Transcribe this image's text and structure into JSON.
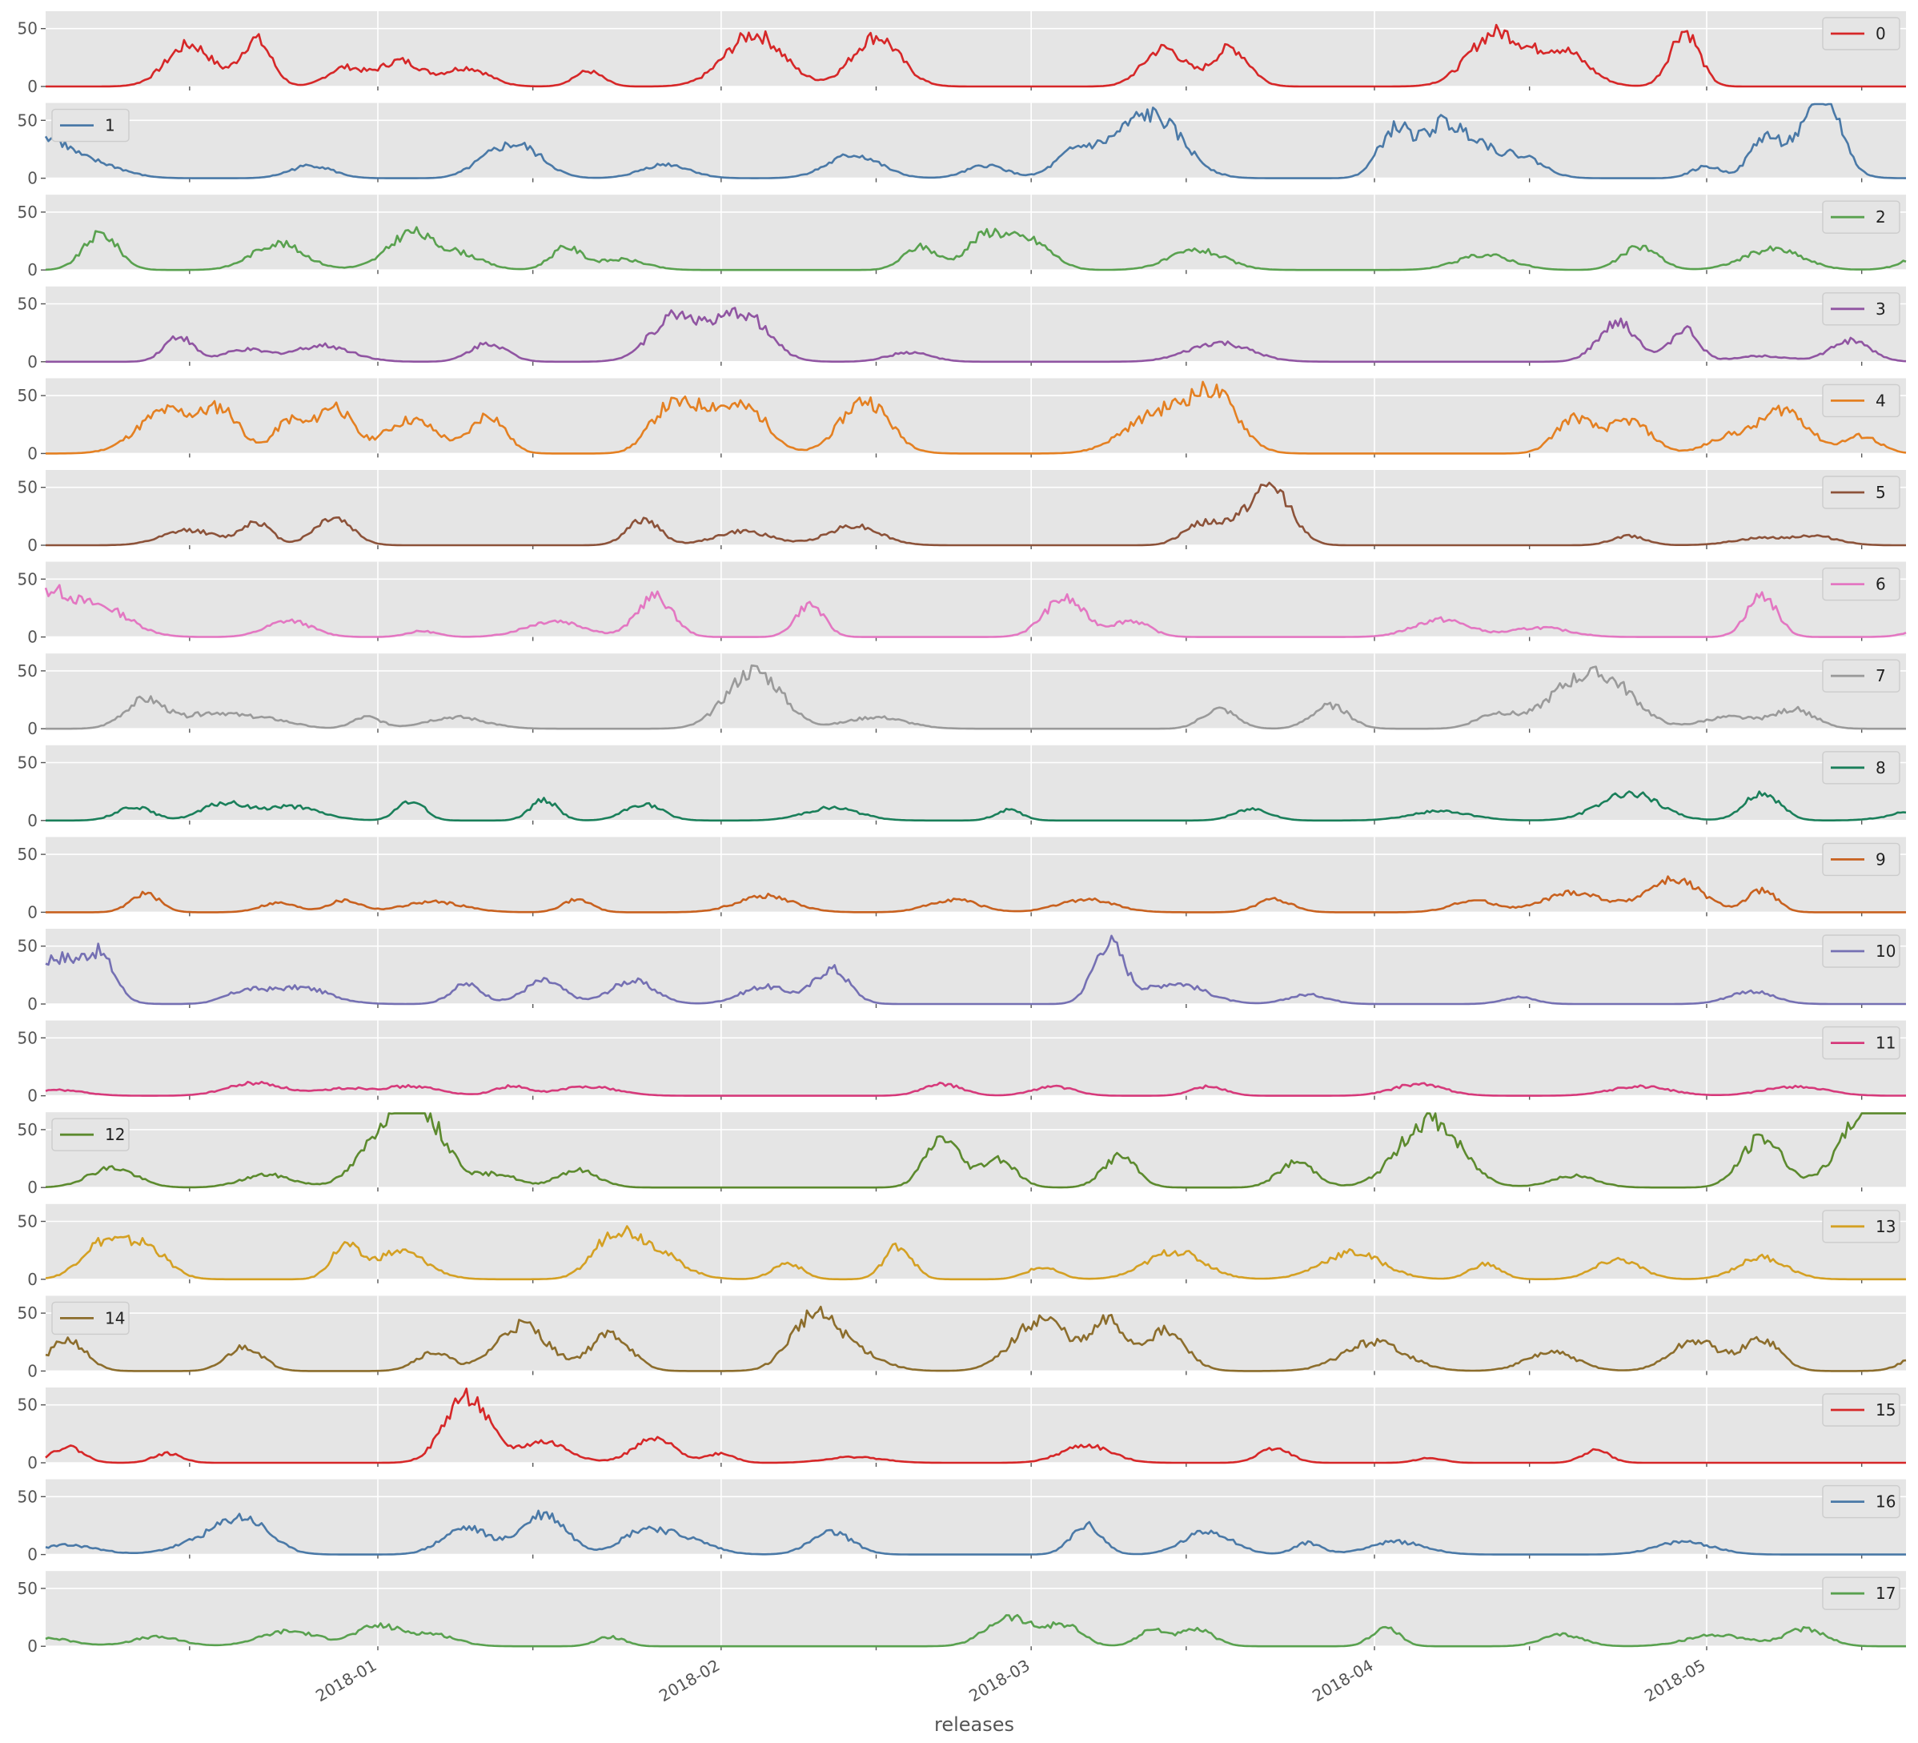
{
  "chart_data": {
    "type": "line",
    "subplots": true,
    "xlabel": "releases",
    "x_start": "2017-12-02",
    "x_end": "2018-05-19",
    "x_ticks": [
      "2018-01",
      "2018-02",
      "2018-03",
      "2018-04",
      "2018-05"
    ],
    "x_tick_dates": [
      "2018-01-01",
      "2018-02-01",
      "2018-03-01",
      "2018-04-01",
      "2018-05-01"
    ],
    "ylim": [
      0,
      65
    ],
    "y_ticks": [
      0,
      50
    ],
    "grid": true,
    "background": "#e5e5e5",
    "series": [
      {
        "name": "0",
        "color": "#d62728",
        "legend": "top-right",
        "peaks": [
          [
            13,
            36
          ],
          [
            19,
            40
          ],
          [
            27,
            16
          ],
          [
            32,
            22
          ],
          [
            38,
            16
          ],
          [
            49,
            13
          ],
          [
            64,
            45
          ],
          [
            75,
            43
          ],
          [
            101,
            33
          ],
          [
            107,
            33
          ],
          [
            131,
            46
          ],
          [
            137,
            30
          ],
          [
            148,
            48
          ]
        ]
      },
      {
        "name": "1",
        "color": "#4a79a7",
        "legend": "top-left",
        "peaks": [
          [
            0,
            30
          ],
          [
            4,
            14
          ],
          [
            24,
            11
          ],
          [
            40,
            12
          ],
          [
            43,
            25
          ],
          [
            56,
            12
          ],
          [
            73,
            20
          ],
          [
            85,
            11
          ],
          [
            93,
            21
          ],
          [
            98,
            32
          ],
          [
            101,
            33
          ],
          [
            122,
            43
          ],
          [
            126,
            42
          ],
          [
            129,
            28
          ],
          [
            133,
            20
          ],
          [
            150,
            10
          ],
          [
            155,
            27
          ],
          [
            159,
            35
          ],
          [
            161,
            44
          ]
        ]
      },
      {
        "name": "2",
        "color": "#59a14f",
        "legend": "top-right",
        "peaks": [
          [
            5,
            31
          ],
          [
            21,
            23
          ],
          [
            31,
            6
          ],
          [
            33,
            26
          ],
          [
            37,
            15
          ],
          [
            47,
            19
          ],
          [
            52,
            9
          ],
          [
            79,
            20
          ],
          [
            85,
            30
          ],
          [
            89,
            24
          ],
          [
            104,
            17
          ],
          [
            130,
            13
          ],
          [
            144,
            20
          ],
          [
            156,
            18
          ],
          [
            172,
            28
          ]
        ]
      },
      {
        "name": "3",
        "color": "#9055a2",
        "legend": "top-right",
        "peaks": [
          [
            12,
            22
          ],
          [
            18,
            10
          ],
          [
            25,
            14
          ],
          [
            40,
            16
          ],
          [
            57,
            40
          ],
          [
            63,
            41
          ],
          [
            78,
            8
          ],
          [
            106,
            16
          ],
          [
            142,
            33
          ],
          [
            148,
            28
          ],
          [
            155,
            5
          ],
          [
            163,
            18
          ]
        ]
      },
      {
        "name": "4",
        "color": "#e48022",
        "legend": "top-right",
        "peaks": [
          [
            11,
            37
          ],
          [
            16,
            33
          ],
          [
            22,
            28
          ],
          [
            26,
            41
          ],
          [
            33,
            29
          ],
          [
            40,
            33
          ],
          [
            56,
            30
          ],
          [
            60,
            38
          ],
          [
            64,
            26
          ],
          [
            74,
            46
          ],
          [
            99,
            20
          ],
          [
            103,
            30
          ],
          [
            106,
            35
          ],
          [
            138,
            30
          ],
          [
            143,
            28
          ],
          [
            152,
            14
          ],
          [
            157,
            38
          ],
          [
            164,
            15
          ]
        ]
      },
      {
        "name": "5",
        "color": "#8c5239",
        "legend": "top-right",
        "peaks": [
          [
            13,
            13
          ],
          [
            19,
            20
          ],
          [
            26,
            24
          ],
          [
            54,
            22
          ],
          [
            63,
            12
          ],
          [
            73,
            17
          ],
          [
            104,
            15
          ],
          [
            108,
            20
          ],
          [
            111,
            42
          ],
          [
            143,
            8
          ],
          [
            155,
            6
          ],
          [
            160,
            7
          ]
        ]
      },
      {
        "name": "6",
        "color": "#e377c2",
        "legend": "top-right",
        "peaks": [
          [
            0,
            36
          ],
          [
            5,
            25
          ],
          [
            22,
            14
          ],
          [
            34,
            5
          ],
          [
            46,
            14
          ],
          [
            55,
            35
          ],
          [
            69,
            28
          ],
          [
            92,
            33
          ],
          [
            98,
            14
          ],
          [
            126,
            15
          ],
          [
            135,
            8
          ],
          [
            155,
            36
          ],
          [
            173,
            35
          ]
        ]
      },
      {
        "name": "7",
        "color": "#9a9a9a",
        "legend": "top-right",
        "peaks": [
          [
            9,
            25
          ],
          [
            15,
            13
          ],
          [
            20,
            8
          ],
          [
            29,
            10
          ],
          [
            37,
            10
          ],
          [
            64,
            50
          ],
          [
            75,
            10
          ],
          [
            106,
            17
          ],
          [
            116,
            20
          ],
          [
            131,
            13
          ],
          [
            138,
            37
          ],
          [
            142,
            28
          ],
          [
            152,
            10
          ],
          [
            158,
            16
          ]
        ]
      },
      {
        "name": "8",
        "color": "#1a7f5a",
        "legend": "top-right",
        "peaks": [
          [
            8,
            12
          ],
          [
            16,
            14
          ],
          [
            22,
            12
          ],
          [
            33,
            17
          ],
          [
            45,
            18
          ],
          [
            54,
            14
          ],
          [
            71,
            11
          ],
          [
            87,
            9
          ],
          [
            109,
            10
          ],
          [
            126,
            8
          ],
          [
            143,
            24
          ],
          [
            155,
            24
          ],
          [
            170,
            10
          ],
          [
            176,
            11
          ]
        ]
      },
      {
        "name": "9",
        "color": "#c8611f",
        "legend": "top-right",
        "peaks": [
          [
            9,
            16
          ],
          [
            21,
            8
          ],
          [
            27,
            10
          ],
          [
            35,
            9
          ],
          [
            48,
            11
          ],
          [
            65,
            14
          ],
          [
            82,
            11
          ],
          [
            94,
            11
          ],
          [
            111,
            11
          ],
          [
            129,
            10
          ],
          [
            138,
            17
          ],
          [
            147,
            28
          ],
          [
            155,
            19
          ],
          [
            176,
            5
          ]
        ]
      },
      {
        "name": "10",
        "color": "#7570b3",
        "legend": "top-right",
        "peaks": [
          [
            1,
            40
          ],
          [
            5,
            31
          ],
          [
            18,
            10
          ],
          [
            23,
            14
          ],
          [
            38,
            17
          ],
          [
            45,
            20
          ],
          [
            53,
            20
          ],
          [
            65,
            15
          ],
          [
            71,
            30
          ],
          [
            96,
            52
          ],
          [
            102,
            18
          ],
          [
            114,
            8
          ],
          [
            133,
            6
          ],
          [
            154,
            11
          ]
        ]
      },
      {
        "name": "11",
        "color": "#d63a7b",
        "legend": "top-right",
        "peaks": [
          [
            1,
            5
          ],
          [
            19,
            11
          ],
          [
            27,
            6
          ],
          [
            33,
            8
          ],
          [
            42,
            8
          ],
          [
            49,
            8
          ],
          [
            81,
            10
          ],
          [
            91,
            8
          ],
          [
            105,
            8
          ],
          [
            124,
            10
          ],
          [
            144,
            8
          ],
          [
            158,
            8
          ],
          [
            173,
            10
          ]
        ]
      },
      {
        "name": "12",
        "color": "#5c8a2e",
        "legend": "top-left",
        "peaks": [
          [
            6,
            17
          ],
          [
            20,
            11
          ],
          [
            31,
            42
          ],
          [
            34,
            49
          ],
          [
            41,
            11
          ],
          [
            48,
            15
          ],
          [
            81,
            43
          ],
          [
            86,
            25
          ],
          [
            97,
            27
          ],
          [
            113,
            22
          ],
          [
            125,
            58
          ],
          [
            138,
            10
          ],
          [
            155,
            43
          ],
          [
            165,
            67
          ],
          [
            169,
            55
          ],
          [
            177,
            45
          ]
        ]
      },
      {
        "name": "13",
        "color": "#d4a023",
        "legend": "top-right",
        "peaks": [
          [
            5,
            30
          ],
          [
            9,
            28
          ],
          [
            27,
            27
          ],
          [
            32,
            24
          ],
          [
            51,
            24
          ],
          [
            54,
            30
          ],
          [
            67,
            14
          ],
          [
            77,
            29
          ],
          [
            90,
            10
          ],
          [
            102,
            24
          ],
          [
            118,
            23
          ],
          [
            130,
            13
          ],
          [
            142,
            17
          ],
          [
            155,
            19
          ],
          [
            178,
            14
          ]
        ]
      },
      {
        "name": "14",
        "color": "#8c6d2c",
        "legend": "top-left",
        "peaks": [
          [
            2,
            27
          ],
          [
            18,
            21
          ],
          [
            35,
            16
          ],
          [
            43,
            40
          ],
          [
            51,
            32
          ],
          [
            69,
            36
          ],
          [
            72,
            22
          ],
          [
            90,
            45
          ],
          [
            96,
            40
          ],
          [
            101,
            34
          ],
          [
            120,
            25
          ],
          [
            136,
            16
          ],
          [
            149,
            26
          ],
          [
            155,
            27
          ],
          [
            171,
            33
          ]
        ]
      },
      {
        "name": "15",
        "color": "#d62728",
        "legend": "top-right",
        "peaks": [
          [
            2,
            14
          ],
          [
            11,
            8
          ],
          [
            38,
            58
          ],
          [
            45,
            18
          ],
          [
            55,
            20
          ],
          [
            61,
            8
          ],
          [
            73,
            5
          ],
          [
            94,
            15
          ],
          [
            111,
            13
          ],
          [
            125,
            4
          ],
          [
            140,
            11
          ]
        ]
      },
      {
        "name": "16",
        "color": "#4a79a7",
        "legend": "top-right",
        "peaks": [
          [
            2,
            8
          ],
          [
            14,
            10
          ],
          [
            18,
            29
          ],
          [
            38,
            23
          ],
          [
            45,
            35
          ],
          [
            54,
            20
          ],
          [
            58,
            12
          ],
          [
            71,
            19
          ],
          [
            94,
            25
          ],
          [
            105,
            20
          ],
          [
            114,
            10
          ],
          [
            122,
            11
          ],
          [
            148,
            11
          ]
        ]
      },
      {
        "name": "17",
        "color": "#59a14f",
        "legend": "top-right",
        "peaks": [
          [
            0,
            7
          ],
          [
            10,
            8
          ],
          [
            22,
            13
          ],
          [
            30,
            17
          ],
          [
            35,
            10
          ],
          [
            51,
            8
          ],
          [
            87,
            25
          ],
          [
            92,
            18
          ],
          [
            100,
            14
          ],
          [
            104,
            14
          ],
          [
            121,
            16
          ],
          [
            137,
            10
          ],
          [
            151,
            10
          ],
          [
            159,
            15
          ],
          [
            176,
            13
          ]
        ]
      }
    ]
  }
}
